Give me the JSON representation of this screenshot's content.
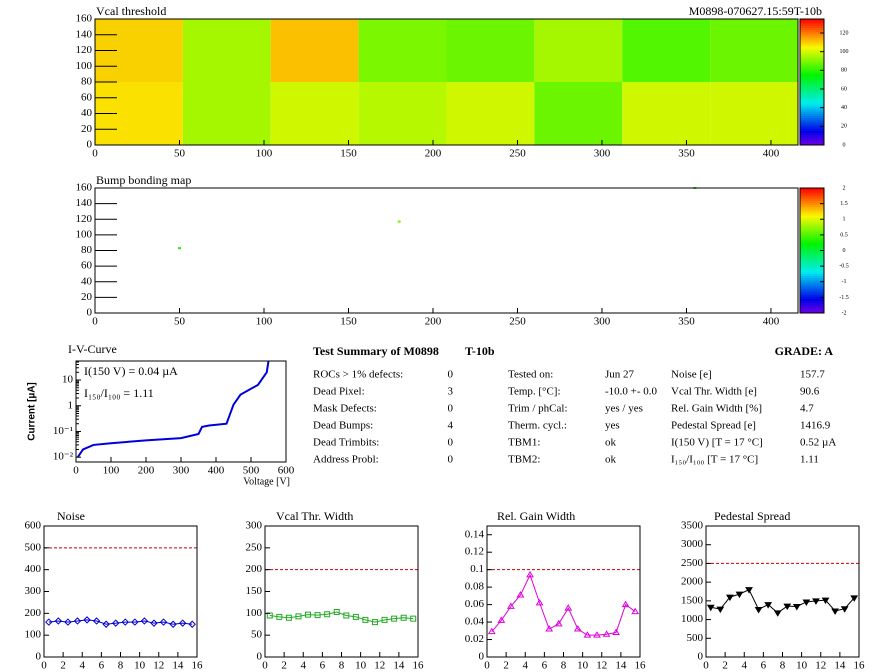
{
  "chart_data": [
    {
      "type": "heatmap",
      "title": "Vcal threshold",
      "title_right": "M0898-070627.15:59T-10b",
      "x_edges": [
        0,
        52,
        104,
        156,
        208,
        260,
        312,
        364,
        416
      ],
      "y_edges": [
        0,
        80,
        160
      ],
      "values": [
        [
          108,
          95,
          100,
          97,
          100,
          88,
          100,
          100
        ],
        [
          110,
          95,
          112,
          90,
          88,
          95,
          85,
          88
        ]
      ],
      "xlim": [
        0,
        416
      ],
      "ylim": [
        0,
        160
      ],
      "xticks": [
        0,
        50,
        100,
        150,
        200,
        250,
        300,
        350,
        400
      ],
      "yticks": [
        0,
        20,
        40,
        60,
        80,
        100,
        120,
        140,
        160
      ],
      "zlim": [
        0,
        135
      ],
      "zticks": [
        0,
        20,
        40,
        60,
        80,
        100,
        120
      ]
    },
    {
      "type": "scatter",
      "title": "Bump bonding map",
      "x": [
        50,
        180,
        355
      ],
      "y": [
        83,
        117,
        160
      ],
      "values": [
        0.3,
        0.6,
        0.4
      ],
      "xlim": [
        0,
        416
      ],
      "ylim": [
        0,
        160
      ],
      "xticks": [
        0,
        50,
        100,
        150,
        200,
        250,
        300,
        350,
        400
      ],
      "yticks": [
        0,
        20,
        40,
        60,
        80,
        100,
        120,
        140,
        160
      ],
      "zlim": [
        -2,
        2
      ],
      "zticks": [
        -2,
        -1.5,
        -1,
        -0.5,
        0,
        0.5,
        1,
        1.5,
        2
      ]
    },
    {
      "type": "line",
      "title": "I-V-Curve",
      "x_label": "Voltage [V]",
      "y_label": "Current [µA]",
      "log_y": true,
      "annotations": [
        "I(150 V) = 0.04 µA",
        "I₁₅₀/I₁₀₀ =  1.11"
      ],
      "x": [
        5,
        20,
        50,
        100,
        200,
        300,
        350,
        360,
        380,
        430,
        450,
        470,
        520,
        545,
        550
      ],
      "series": [
        {
          "color": "#0000dd",
          "values": [
            0.01,
            0.02,
            0.03,
            0.035,
            0.045,
            0.055,
            0.08,
            0.15,
            0.17,
            0.2,
            1.1,
            2.7,
            6.5,
            20,
            55
          ]
        }
      ],
      "xlim": [
        0,
        600
      ],
      "ylim": [
        0.0065,
        55
      ],
      "xticks": [
        0,
        100,
        200,
        300,
        400,
        500,
        600
      ],
      "yticks": [
        {
          "value": 0.01,
          "label": "10⁻²"
        },
        {
          "value": 0.1,
          "label": "10⁻¹"
        },
        1,
        10
      ]
    },
    {
      "type": "line",
      "title": "Noise",
      "markers": "diamond",
      "threshold": 500,
      "x": [
        0.5,
        1.5,
        2.5,
        3.5,
        4.5,
        5.5,
        6.5,
        7.5,
        8.5,
        9.5,
        10.5,
        11.5,
        12.5,
        13.5,
        14.5,
        15.5
      ],
      "series": [
        {
          "color": "#0000cc",
          "values": [
            160,
            165,
            160,
            165,
            170,
            165,
            150,
            155,
            160,
            160,
            165,
            155,
            160,
            150,
            155,
            150
          ]
        }
      ],
      "xlim": [
        0,
        16
      ],
      "ylim": [
        0,
        600
      ],
      "xticks": [
        0,
        2,
        4,
        6,
        8,
        10,
        12,
        14,
        16
      ],
      "yticks": [
        0,
        100,
        200,
        300,
        400,
        500,
        600
      ]
    },
    {
      "type": "line",
      "title": "Vcal Thr. Width",
      "markers": "square",
      "threshold": 200,
      "x": [
        0.5,
        1.5,
        2.5,
        3.5,
        4.5,
        5.5,
        6.5,
        7.5,
        8.5,
        9.5,
        10.5,
        11.5,
        12.5,
        13.5,
        14.5,
        15.5
      ],
      "series": [
        {
          "color": "#22aa22",
          "values": [
            95,
            92,
            90,
            93,
            97,
            96,
            98,
            103,
            95,
            92,
            85,
            80,
            85,
            88,
            90,
            88
          ]
        }
      ],
      "xlim": [
        0,
        16
      ],
      "ylim": [
        0,
        300
      ],
      "xticks": [
        0,
        2,
        4,
        6,
        8,
        10,
        12,
        14,
        16
      ],
      "yticks": [
        0,
        50,
        100,
        150,
        200,
        250,
        300
      ]
    },
    {
      "type": "line",
      "title": "Rel. Gain Width",
      "markers": "triangle",
      "threshold": 0.1,
      "x": [
        0.5,
        1.5,
        2.5,
        3.5,
        4.5,
        5.5,
        6.5,
        7.5,
        8.5,
        9.5,
        10.5,
        11.5,
        12.5,
        13.5,
        14.5,
        15.5
      ],
      "series": [
        {
          "color": "#dd00dd",
          "values": [
            0.029,
            0.042,
            0.058,
            0.071,
            0.094,
            0.062,
            0.032,
            0.038,
            0.056,
            0.032,
            0.025,
            0.025,
            0.026,
            0.028,
            0.06,
            0.052
          ]
        }
      ],
      "xlim": [
        0,
        16
      ],
      "ylim": [
        0,
        0.15
      ],
      "xticks": [
        0,
        2,
        4,
        6,
        8,
        10,
        12,
        14,
        16
      ],
      "yticks": [
        0,
        0.02,
        0.04,
        0.06,
        0.08,
        0.1,
        0.12,
        0.14
      ]
    },
    {
      "type": "line",
      "title": "Pedestal Spread",
      "markers": "triangle-down",
      "threshold": 2500,
      "x": [
        0.5,
        1.5,
        2.5,
        3.5,
        4.5,
        5.5,
        6.5,
        7.5,
        8.5,
        9.5,
        10.5,
        11.5,
        12.5,
        13.5,
        14.5,
        15.5
      ],
      "series": [
        {
          "color": "#000000",
          "values": [
            1330,
            1280,
            1600,
            1680,
            1800,
            1270,
            1400,
            1180,
            1360,
            1350,
            1470,
            1500,
            1520,
            1230,
            1290,
            1580
          ]
        }
      ],
      "xlim": [
        0,
        16
      ],
      "ylim": [
        0,
        3500
      ],
      "xticks": [
        0,
        2,
        4,
        6,
        8,
        10,
        12,
        14,
        16
      ],
      "yticks": [
        0,
        500,
        1000,
        1500,
        2000,
        2500,
        3000,
        3500
      ]
    }
  ],
  "summary": {
    "title": "Test Summary of M0898",
    "tag": "T-10b",
    "grade": "GRADE:  A",
    "columns": [
      [
        {
          "label": "ROCs > 1% defects:",
          "value": 0
        },
        {
          "label": "Dead Pixel:",
          "value": 3
        },
        {
          "label": "Mask Defects:",
          "value": 0
        },
        {
          "label": "Dead Bumps:",
          "value": 4
        },
        {
          "label": "Dead Trimbits:",
          "value": 0
        },
        {
          "label": "Address Probl:",
          "value": 0
        }
      ],
      [
        {
          "label": "Tested on:",
          "value": "Jun 27"
        },
        {
          "label": "Temp. [°C]:",
          "value": "-10.0 +- 0.0"
        },
        {
          "label": "Trim / phCal:",
          "value": "yes / yes"
        },
        {
          "label": "Therm. cycl.:",
          "value": "yes"
        },
        {
          "label": "TBM1:",
          "value": "ok"
        },
        {
          "label": "TBM2:",
          "value": "ok"
        }
      ],
      [
        {
          "label": "Noise [e]",
          "value": 157.7
        },
        {
          "label": "Vcal Thr. Width [e]",
          "value": 90.6
        },
        {
          "label": "Rel. Gain Width [%]",
          "value": 4.7
        },
        {
          "label": "Pedestal Spread [e]",
          "value": 1416.9
        },
        {
          "label": "I(150 V) [T = 17 °C]",
          "value": "0.52 µA"
        },
        {
          "label": "I₁₅₀/I₁₀₀  [T = 17 °C]",
          "value": 1.11
        }
      ]
    ]
  }
}
